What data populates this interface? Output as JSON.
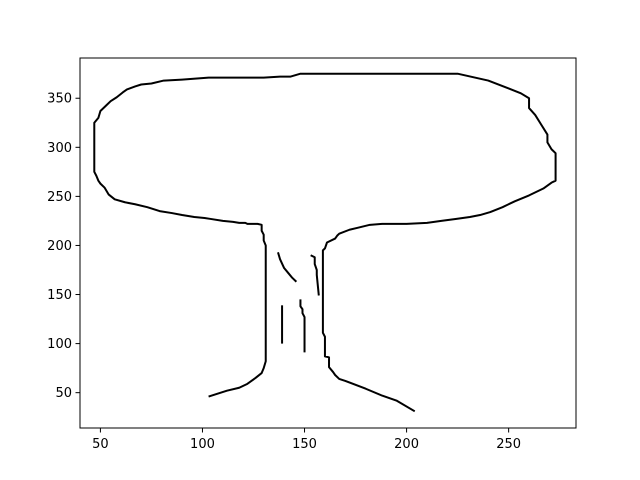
{
  "chart_data": {
    "type": "line",
    "title": "",
    "xlabel": "",
    "ylabel": "",
    "xlim": [
      40,
      283
    ],
    "ylim": [
      14,
      391
    ],
    "grid": false,
    "legend": "none",
    "xticks": [
      50,
      100,
      150,
      200,
      250
    ],
    "yticks": [
      50,
      100,
      150,
      200,
      250,
      300,
      350
    ],
    "line_color": "#000000",
    "series": [
      {
        "values": [
          [
            103,
            46
          ],
          [
            112,
            52
          ],
          [
            118,
            55
          ],
          [
            122,
            59
          ],
          [
            126,
            65
          ],
          [
            129,
            70
          ],
          [
            130,
            75
          ],
          [
            131,
            82
          ],
          [
            131,
            200
          ],
          [
            130,
            205
          ],
          [
            130,
            211
          ],
          [
            129,
            215
          ],
          [
            129,
            221
          ],
          [
            127,
            222
          ],
          [
            122,
            222
          ],
          [
            121,
            223
          ],
          [
            118,
            223
          ],
          [
            115,
            224
          ],
          [
            110,
            225
          ],
          [
            104,
            227
          ],
          [
            101,
            228
          ],
          [
            96,
            229
          ],
          [
            90,
            231
          ],
          [
            85,
            233
          ],
          [
            79,
            235
          ],
          [
            73,
            239
          ],
          [
            67,
            242
          ],
          [
            62,
            244
          ],
          [
            57,
            247
          ],
          [
            54,
            252
          ],
          [
            52,
            259
          ],
          [
            50,
            263
          ],
          [
            49,
            266
          ],
          [
            48,
            271
          ],
          [
            47,
            275
          ],
          [
            47,
            280
          ],
          [
            47,
            325
          ],
          [
            49,
            330
          ],
          [
            50,
            337
          ],
          [
            53,
            343
          ],
          [
            55,
            347
          ],
          [
            58,
            351
          ],
          [
            61,
            356
          ],
          [
            63,
            359
          ],
          [
            67,
            362
          ],
          [
            70,
            364
          ],
          [
            75,
            365
          ],
          [
            81,
            368
          ],
          [
            90,
            369
          ],
          [
            103,
            371
          ],
          [
            130,
            371
          ],
          [
            138,
            372
          ],
          [
            143,
            372
          ],
          [
            148,
            375
          ],
          [
            225,
            375
          ],
          [
            240,
            368
          ],
          [
            250,
            360
          ],
          [
            256,
            355
          ],
          [
            260,
            350
          ],
          [
            260,
            340
          ],
          [
            263,
            333
          ],
          [
            266,
            323
          ],
          [
            269,
            313
          ],
          [
            269,
            305
          ],
          [
            271,
            298
          ],
          [
            273,
            294
          ],
          [
            273,
            288
          ],
          [
            273,
            266
          ],
          [
            271,
            264
          ],
          [
            267,
            258
          ],
          [
            260,
            251
          ],
          [
            253,
            245
          ],
          [
            247,
            239
          ],
          [
            241,
            234
          ],
          [
            236,
            231
          ],
          [
            231,
            229
          ],
          [
            224,
            227
          ],
          [
            217,
            225
          ],
          [
            210,
            223
          ],
          [
            200,
            222
          ],
          [
            188,
            222
          ],
          [
            182,
            221
          ],
          [
            180,
            220
          ],
          [
            176,
            218
          ],
          [
            172,
            216
          ],
          [
            167,
            212
          ],
          [
            166,
            210
          ],
          [
            165,
            207
          ],
          [
            161,
            203
          ],
          [
            160,
            197
          ],
          [
            159,
            195
          ],
          [
            159,
            111
          ],
          [
            160,
            107
          ],
          [
            160,
            87
          ],
          [
            162,
            86
          ],
          [
            162,
            76
          ],
          [
            164,
            71
          ],
          [
            165,
            68
          ],
          [
            167,
            64
          ],
          [
            170,
            62
          ],
          [
            180,
            54
          ],
          [
            188,
            47
          ],
          [
            195,
            42
          ],
          [
            204,
            31
          ]
        ]
      },
      {
        "values": [
          [
            137,
            193
          ],
          [
            138,
            186
          ],
          [
            140,
            177
          ],
          [
            142,
            172
          ],
          [
            144,
            167
          ],
          [
            146,
            163
          ]
        ]
      },
      {
        "values": [
          [
            153,
            190
          ],
          [
            154,
            189
          ],
          [
            155,
            188
          ],
          [
            155,
            181
          ],
          [
            156,
            175
          ],
          [
            156,
            170
          ],
          [
            157,
            149
          ]
        ]
      },
      {
        "values": [
          [
            139,
            139
          ],
          [
            139,
            100
          ]
        ]
      },
      {
        "values": [
          [
            148,
            145
          ],
          [
            148,
            138
          ],
          [
            149,
            135
          ],
          [
            149,
            131
          ],
          [
            150,
            127
          ],
          [
            150,
            91
          ]
        ]
      }
    ]
  }
}
